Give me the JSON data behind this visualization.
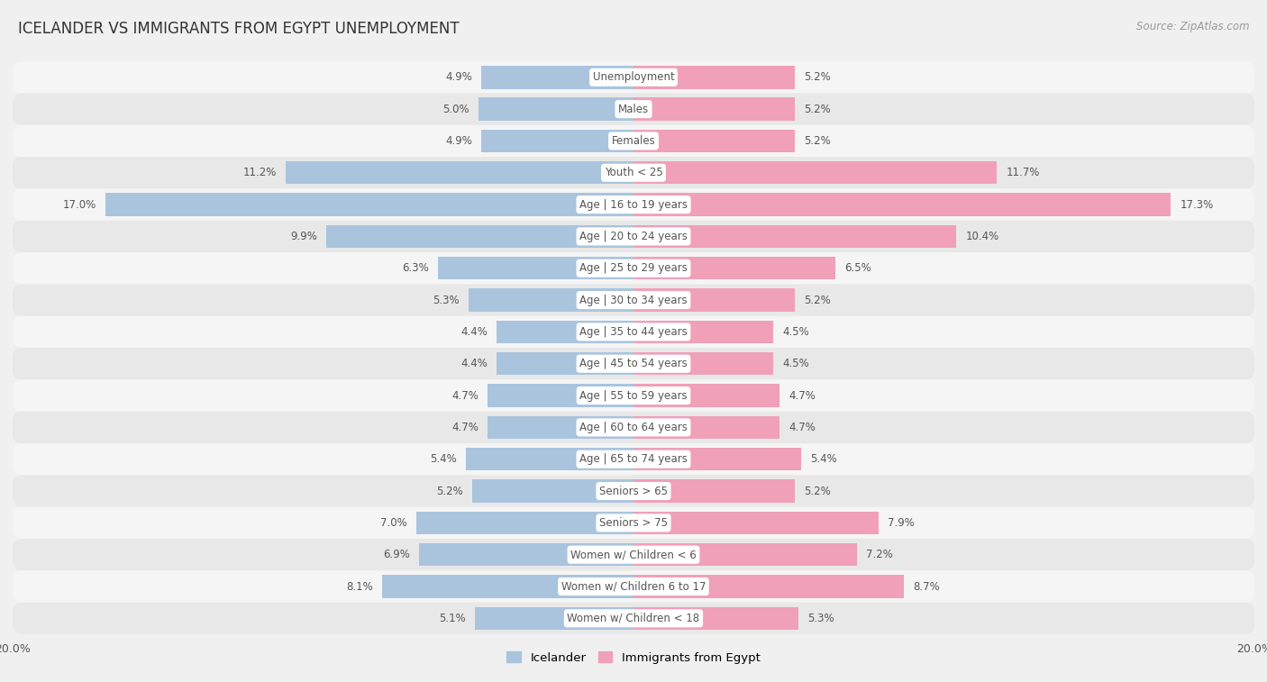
{
  "title": "ICELANDER VS IMMIGRANTS FROM EGYPT UNEMPLOYMENT",
  "source": "Source: ZipAtlas.com",
  "categories": [
    "Unemployment",
    "Males",
    "Females",
    "Youth < 25",
    "Age | 16 to 19 years",
    "Age | 20 to 24 years",
    "Age | 25 to 29 years",
    "Age | 30 to 34 years",
    "Age | 35 to 44 years",
    "Age | 45 to 54 years",
    "Age | 55 to 59 years",
    "Age | 60 to 64 years",
    "Age | 65 to 74 years",
    "Seniors > 65",
    "Seniors > 75",
    "Women w/ Children < 6",
    "Women w/ Children 6 to 17",
    "Women w/ Children < 18"
  ],
  "icelander": [
    4.9,
    5.0,
    4.9,
    11.2,
    17.0,
    9.9,
    6.3,
    5.3,
    4.4,
    4.4,
    4.7,
    4.7,
    5.4,
    5.2,
    7.0,
    6.9,
    8.1,
    5.1
  ],
  "egypt": [
    5.2,
    5.2,
    5.2,
    11.7,
    17.3,
    10.4,
    6.5,
    5.2,
    4.5,
    4.5,
    4.7,
    4.7,
    5.4,
    5.2,
    7.9,
    7.2,
    8.7,
    5.3
  ],
  "icelander_color": "#aac4de",
  "egypt_color": "#f0a0b8",
  "row_colors": [
    "#f5f5f5",
    "#e8e8e8"
  ],
  "background_color": "#f0f0f0",
  "max_val": 20.0,
  "legend_icelander": "Icelander",
  "legend_egypt": "Immigrants from Egypt",
  "title_color": "#333333",
  "label_color": "#555555",
  "source_color": "#999999",
  "center_label_color": "#555555",
  "value_label_color": "#555555"
}
